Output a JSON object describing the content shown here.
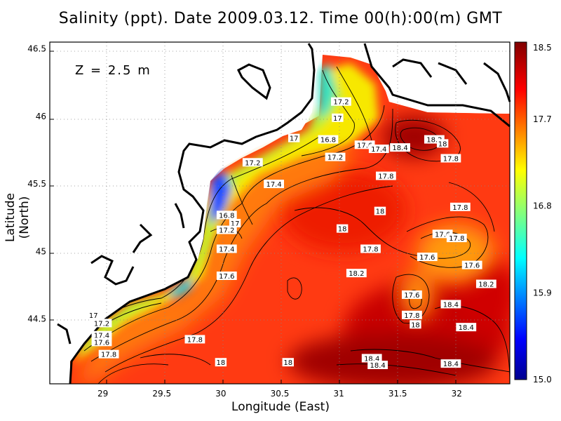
{
  "title": "Salinity (ppt). Date 2009.03.12. Time 00(h):00(m) GMT",
  "depth_label": "Z = 2.5 m",
  "xlabel": "Longitude (East)",
  "ylabel": "Latitude (North)",
  "chart_data": {
    "type": "heatmap",
    "title": "Salinity (ppt). Date 2009.03.12. Time 00(h):00(m) GMT",
    "xlabel": "Longitude (East)",
    "ylabel": "Latitude (North)",
    "xlim": [
      28.55,
      32.45
    ],
    "ylim": [
      44.02,
      46.55
    ],
    "x_ticks": [
      "29",
      "29.5",
      "30",
      "30.5",
      "31",
      "31.5",
      "32"
    ],
    "y_ticks": [
      "44.5",
      "45",
      "45.5",
      "46",
      "46.5"
    ],
    "colorbar": {
      "min": 15.0,
      "max": 18.5,
      "ticks": [
        "15.0",
        "15.9",
        "16.8",
        "17.7",
        "18.5"
      ]
    },
    "grid": true,
    "colormap": [
      "#00008f",
      "#0000ff",
      "#00ffff",
      "#ffff00",
      "#ff0000",
      "#800000"
    ],
    "contour_labels": [
      {
        "text": "17.2",
        "lon": 31.02,
        "lat": 46.11
      },
      {
        "text": "17",
        "lon": 30.99,
        "lat": 45.99
      },
      {
        "text": "17",
        "lon": 30.62,
        "lat": 45.84
      },
      {
        "text": "16.8",
        "lon": 30.91,
        "lat": 45.83
      },
      {
        "text": "17.6",
        "lon": 31.22,
        "lat": 45.79
      },
      {
        "text": "17.4",
        "lon": 31.34,
        "lat": 45.76
      },
      {
        "text": "18.4",
        "lon": 31.52,
        "lat": 45.77
      },
      {
        "text": "18.2",
        "lon": 31.81,
        "lat": 45.83
      },
      {
        "text": "18",
        "lon": 31.88,
        "lat": 45.8
      },
      {
        "text": "17.2",
        "lon": 30.97,
        "lat": 45.7
      },
      {
        "text": "17.2",
        "lon": 30.27,
        "lat": 45.66
      },
      {
        "text": "17.8",
        "lon": 31.95,
        "lat": 45.69
      },
      {
        "text": "17.8",
        "lon": 31.4,
        "lat": 45.56
      },
      {
        "text": "17.4",
        "lon": 30.45,
        "lat": 45.5
      },
      {
        "text": "17.8",
        "lon": 32.03,
        "lat": 45.33
      },
      {
        "text": "18",
        "lon": 31.35,
        "lat": 45.3
      },
      {
        "text": "16.8",
        "lon": 30.05,
        "lat": 45.27
      },
      {
        "text": "17",
        "lon": 30.12,
        "lat": 45.21
      },
      {
        "text": "17.2",
        "lon": 30.05,
        "lat": 45.16
      },
      {
        "text": "18",
        "lon": 31.03,
        "lat": 45.17
      },
      {
        "text": "17.6",
        "lon": 31.88,
        "lat": 45.13
      },
      {
        "text": "17.8",
        "lon": 32.0,
        "lat": 45.1
      },
      {
        "text": "17.4",
        "lon": 30.05,
        "lat": 45.02
      },
      {
        "text": "17.8",
        "lon": 31.27,
        "lat": 45.02
      },
      {
        "text": "17.6",
        "lon": 31.75,
        "lat": 44.96
      },
      {
        "text": "17.6",
        "lon": 32.13,
        "lat": 44.9
      },
      {
        "text": "18.2",
        "lon": 31.15,
        "lat": 44.84
      },
      {
        "text": "17.6",
        "lon": 30.05,
        "lat": 44.82
      },
      {
        "text": "18.2",
        "lon": 32.25,
        "lat": 44.76
      },
      {
        "text": "17.6",
        "lon": 31.62,
        "lat": 44.68
      },
      {
        "text": "18.4",
        "lon": 31.95,
        "lat": 44.61
      },
      {
        "text": "17.8",
        "lon": 31.62,
        "lat": 44.53
      },
      {
        "text": "18",
        "lon": 31.65,
        "lat": 44.46
      },
      {
        "text": "17",
        "lon": 28.92,
        "lat": 44.53
      },
      {
        "text": "17.2",
        "lon": 28.99,
        "lat": 44.47
      },
      {
        "text": "18.4",
        "lon": 32.08,
        "lat": 44.44
      },
      {
        "text": "17.4",
        "lon": 28.99,
        "lat": 44.38
      },
      {
        "text": "17.8",
        "lon": 29.78,
        "lat": 44.35
      },
      {
        "text": "17.6",
        "lon": 28.99,
        "lat": 44.33
      },
      {
        "text": "17.8",
        "lon": 29.05,
        "lat": 44.24
      },
      {
        "text": "18.4",
        "lon": 31.28,
        "lat": 44.21
      },
      {
        "text": "18",
        "lon": 30.0,
        "lat": 44.18
      },
      {
        "text": "18",
        "lon": 30.57,
        "lat": 44.18
      },
      {
        "text": "18.4",
        "lon": 31.33,
        "lat": 44.16
      },
      {
        "text": "18.4",
        "lon": 31.95,
        "lat": 44.17
      }
    ]
  }
}
